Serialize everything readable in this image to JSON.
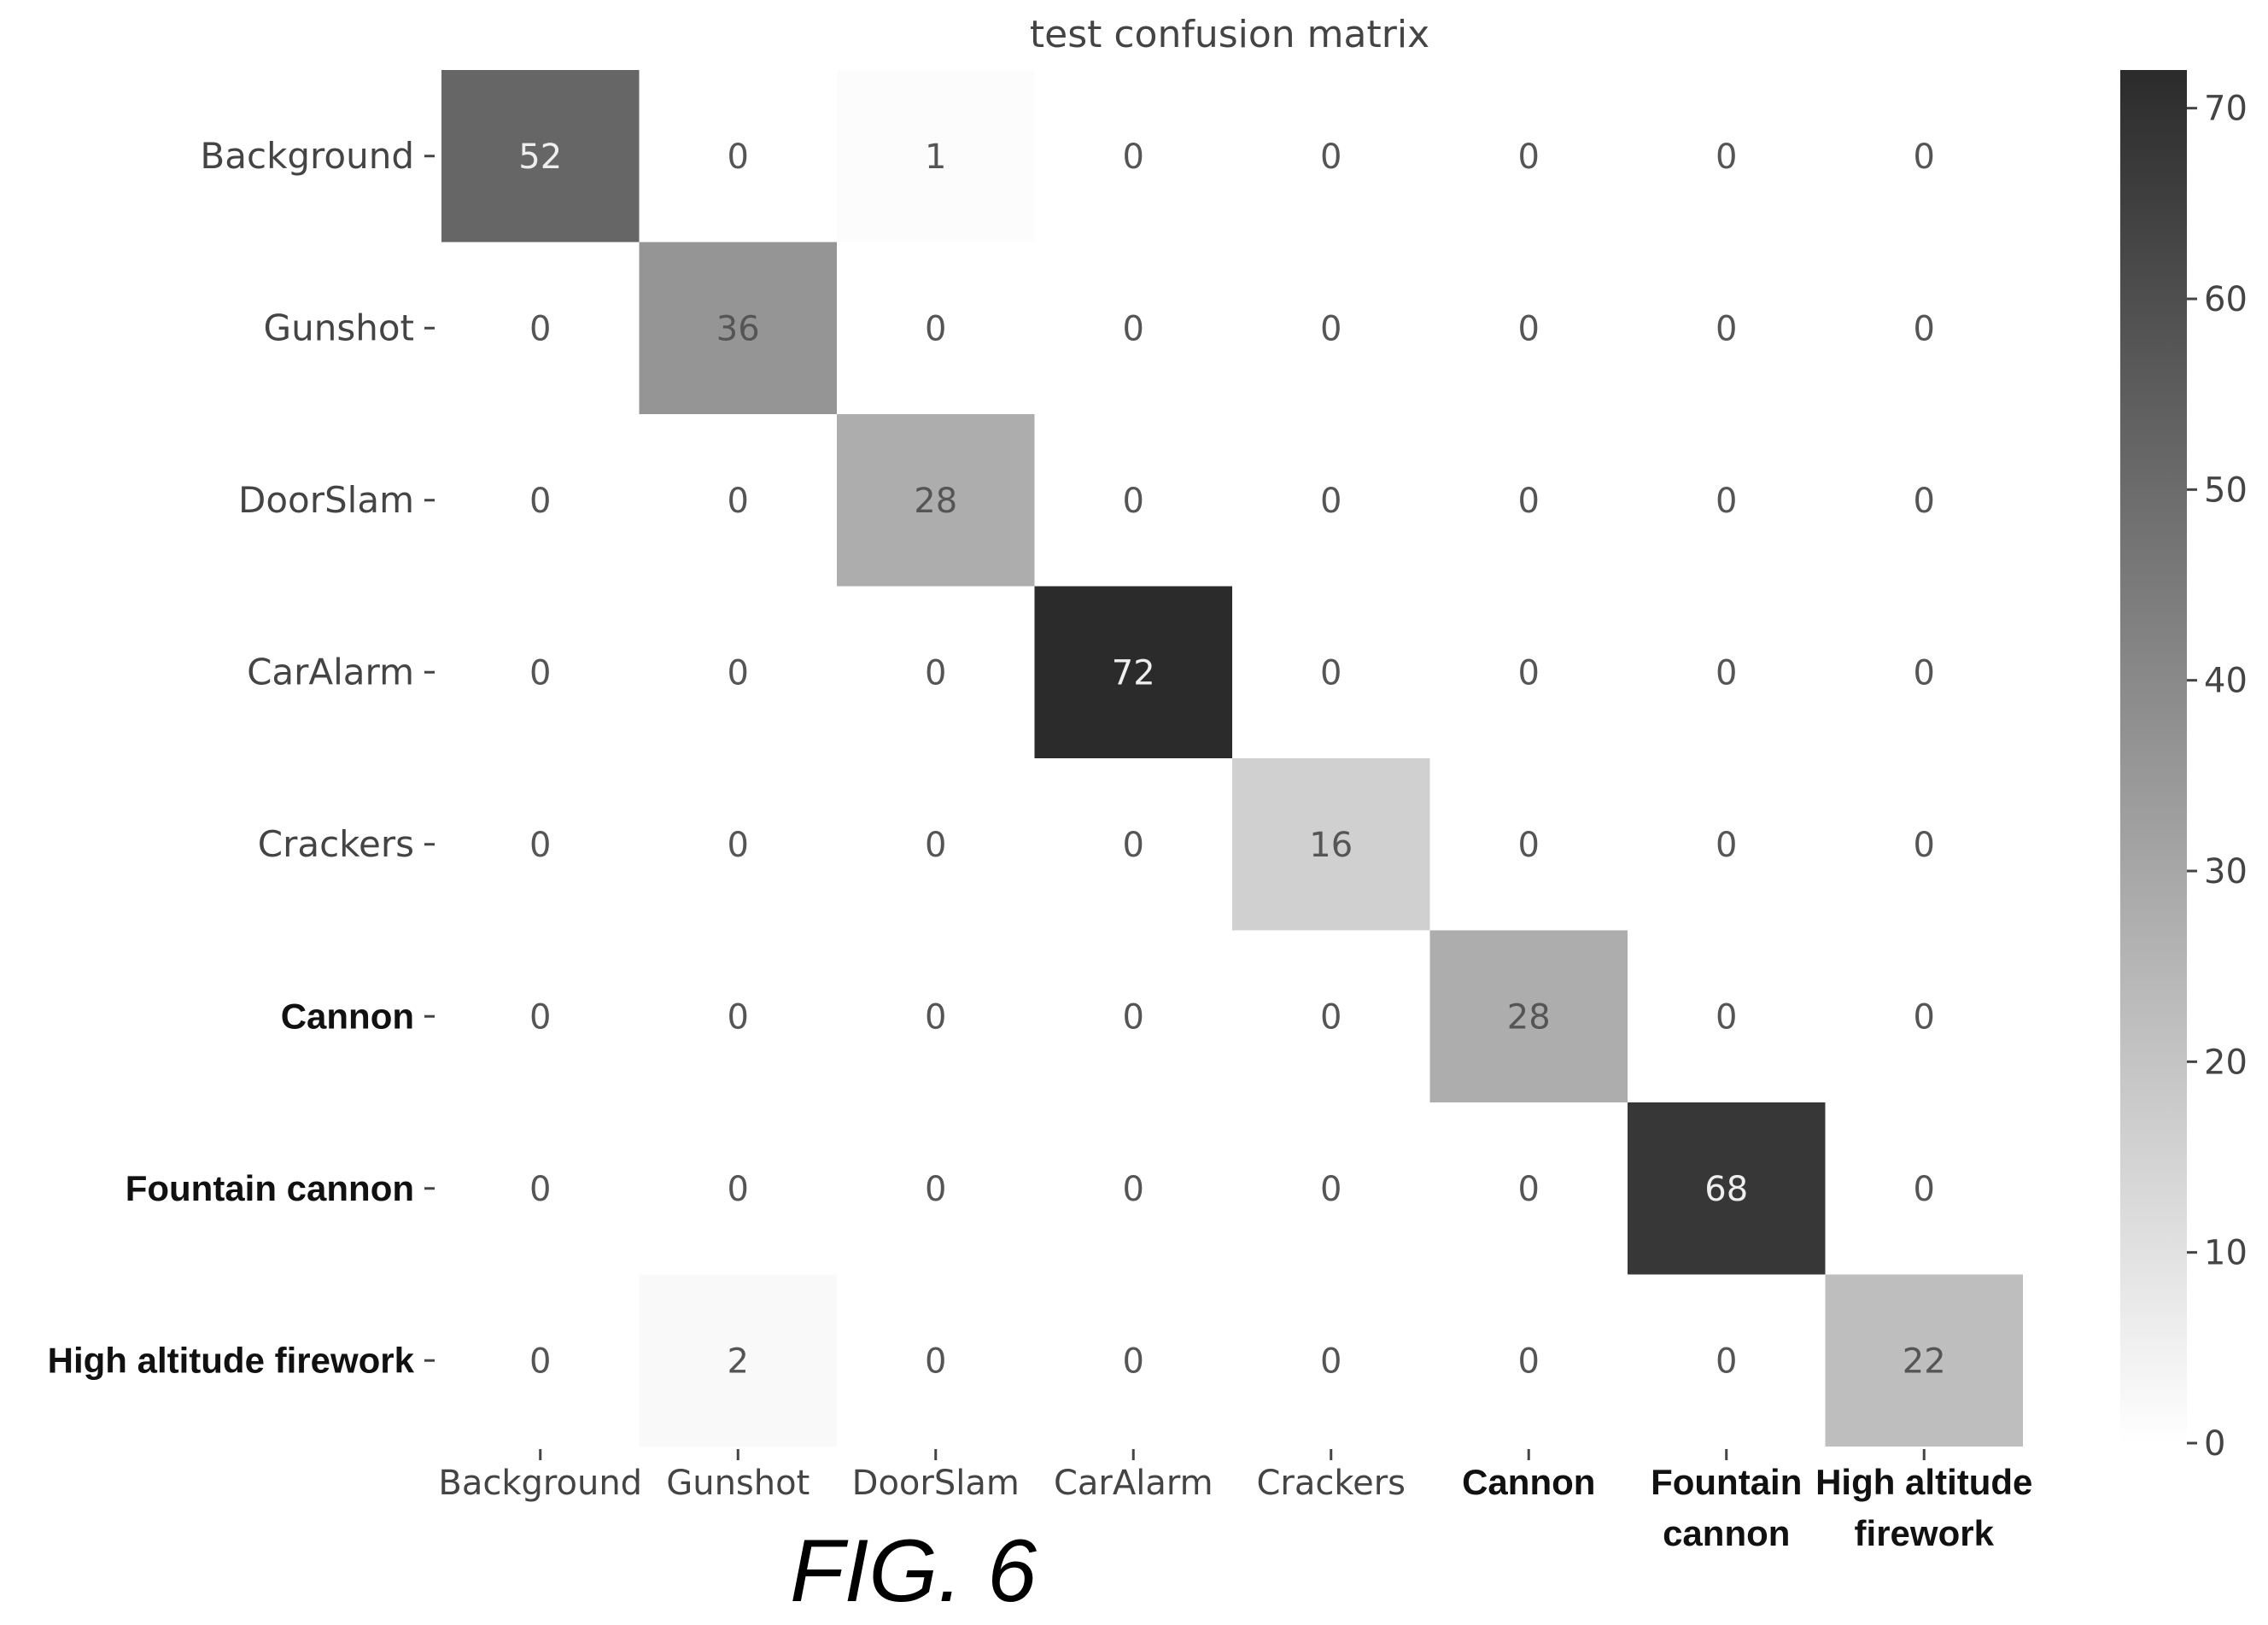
{
  "chart_data": {
    "type": "heatmap",
    "title": "test confusion matrix",
    "xlabel": "",
    "ylabel": "",
    "row_labels": [
      "Background",
      "Gunshot",
      "DoorSlam",
      "CarAlarm",
      "Crackers",
      "Cannon",
      "Fountain cannon",
      "High altitude firework"
    ],
    "col_labels": [
      [
        "Background"
      ],
      [
        "Gunshot"
      ],
      [
        "DoorSlam"
      ],
      [
        "CarAlarm"
      ],
      [
        "Crackers"
      ],
      [
        "Cannon"
      ],
      [
        "Fountain",
        "cannon"
      ],
      [
        "High altitude",
        "firework"
      ]
    ],
    "bold_labels_from_index": 5,
    "matrix": [
      [
        52,
        0,
        1,
        0,
        0,
        0,
        0,
        0
      ],
      [
        0,
        36,
        0,
        0,
        0,
        0,
        0,
        0
      ],
      [
        0,
        0,
        28,
        0,
        0,
        0,
        0,
        0
      ],
      [
        0,
        0,
        0,
        72,
        0,
        0,
        0,
        0
      ],
      [
        0,
        0,
        0,
        0,
        16,
        0,
        0,
        0
      ],
      [
        0,
        0,
        0,
        0,
        0,
        28,
        0,
        0
      ],
      [
        0,
        0,
        0,
        0,
        0,
        0,
        68,
        0
      ],
      [
        0,
        2,
        0,
        0,
        0,
        0,
        0,
        22
      ]
    ],
    "colorbar": {
      "range": [
        0,
        72
      ],
      "ticks": [
        0,
        10,
        20,
        30,
        40,
        50,
        60,
        70
      ],
      "colormap": "white-to-dark-gray"
    },
    "grid": false,
    "legend": "colorbar-right"
  },
  "caption": "FIG. 6",
  "colors": {
    "cmap_low": "#ffffff",
    "cmap_high": "#2b2b2b",
    "text_dark": "#555555",
    "text_light": "#eeeeee"
  }
}
